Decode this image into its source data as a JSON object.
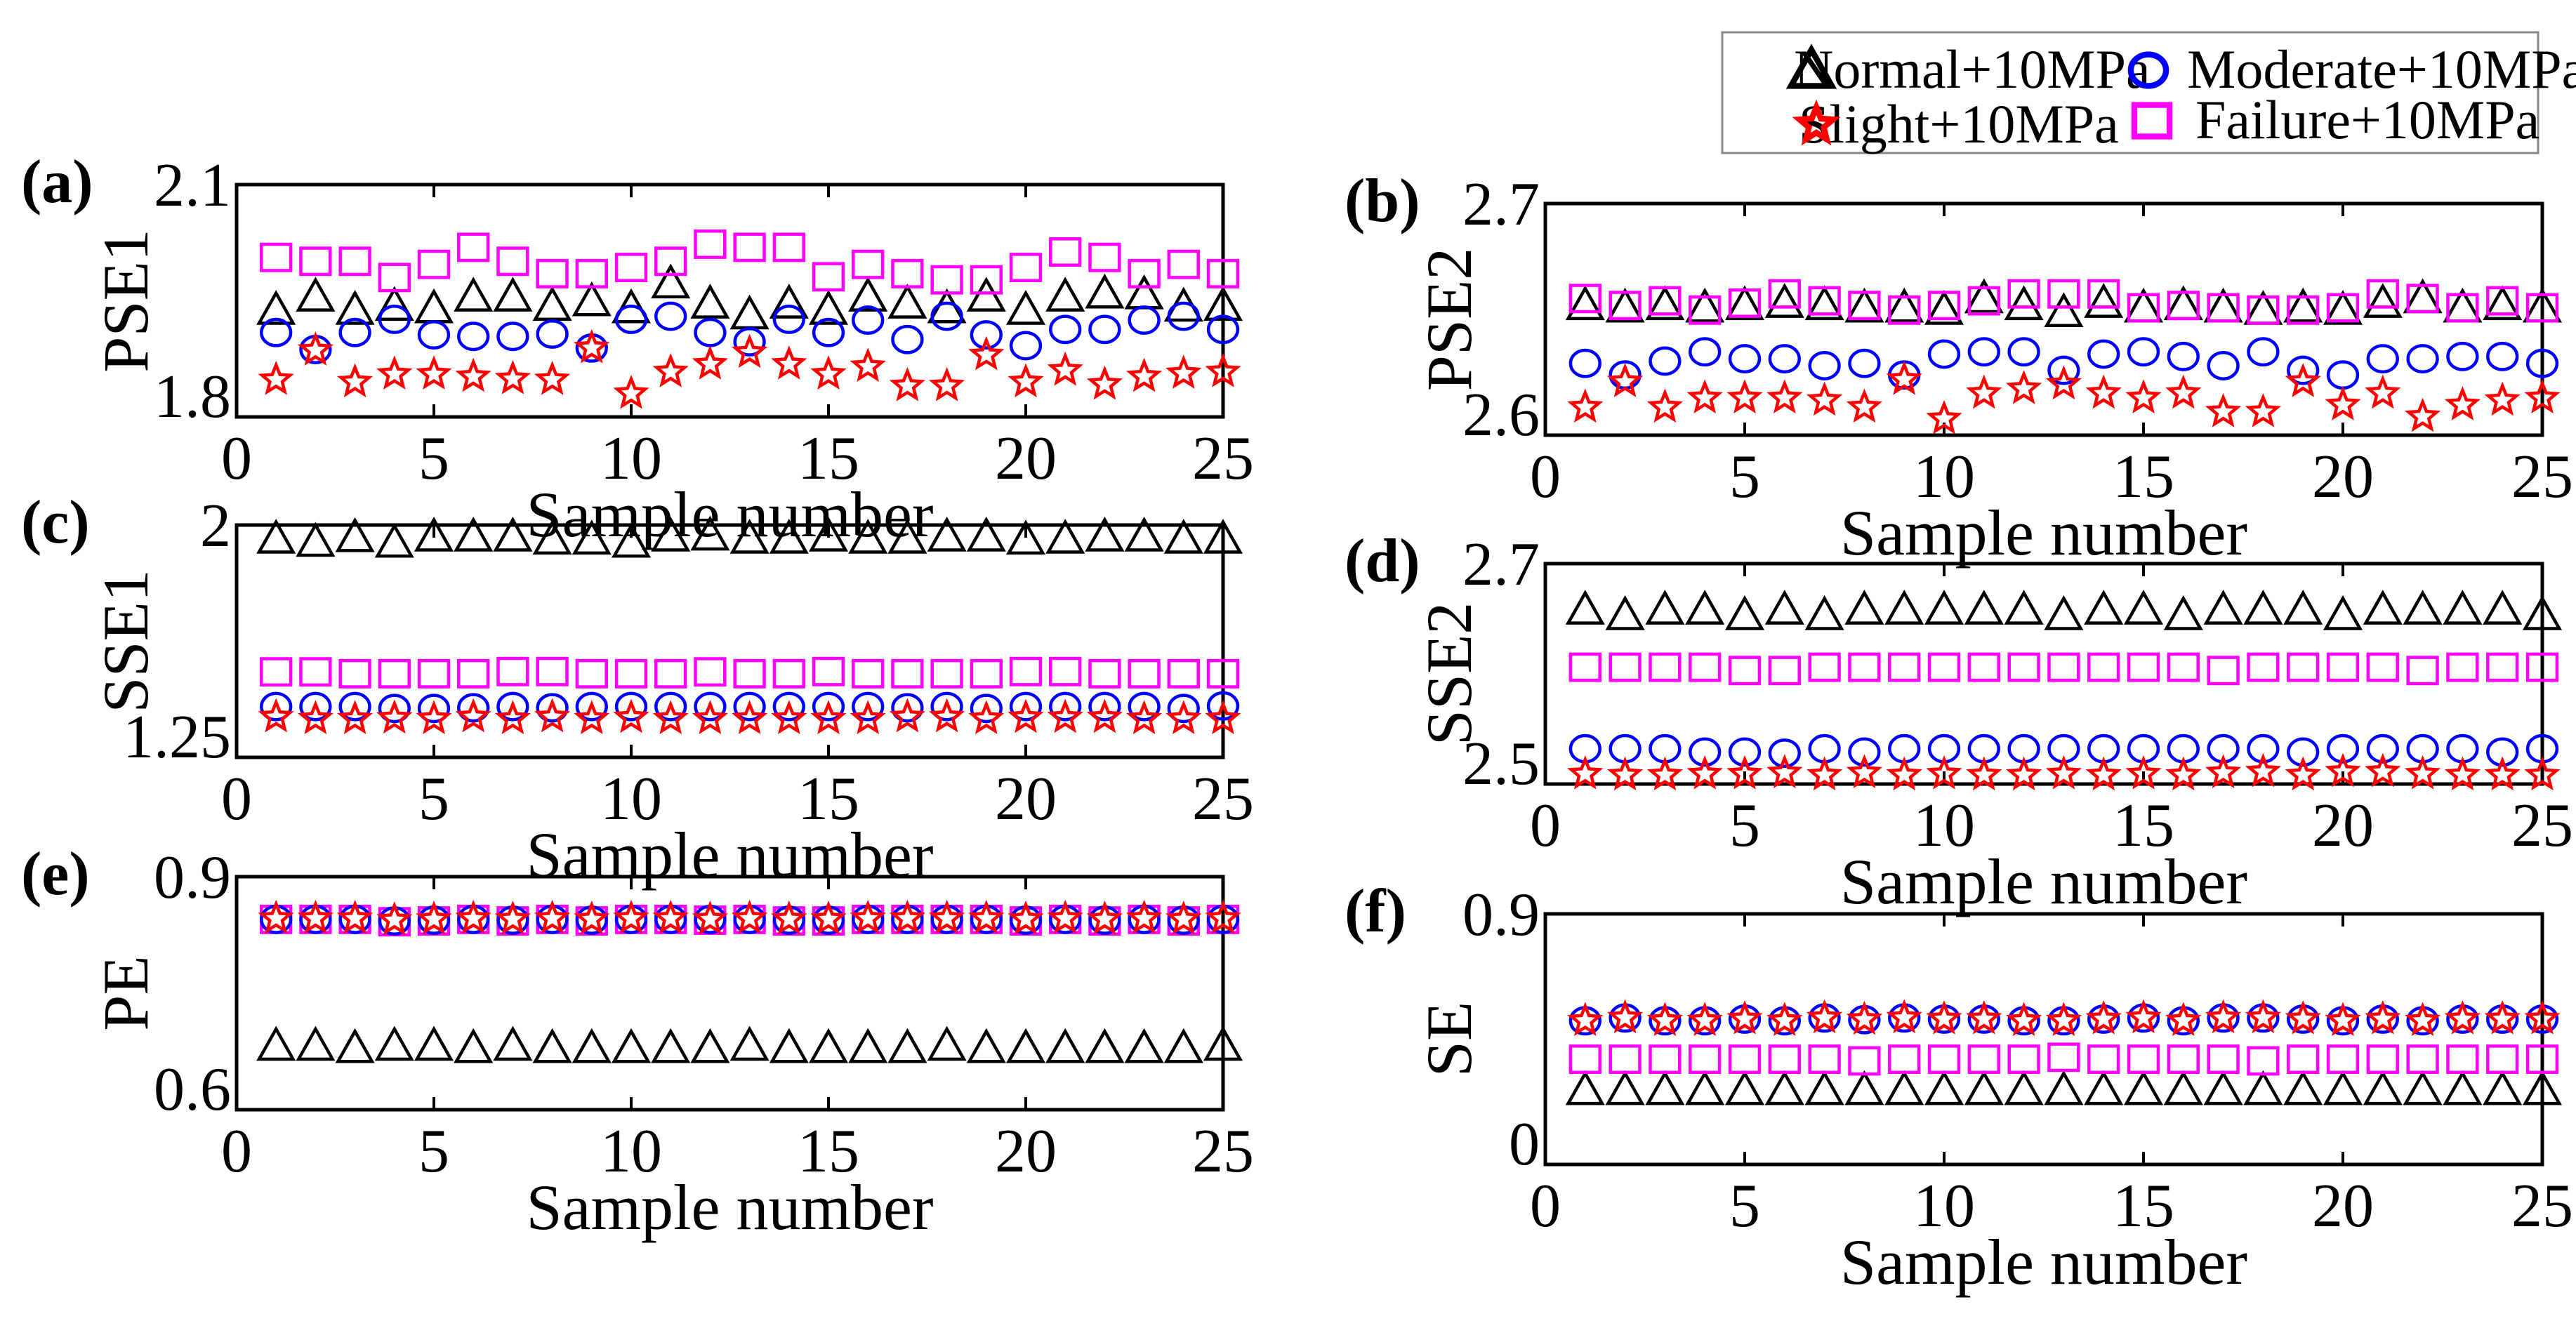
{
  "legend": {
    "entries": [
      {
        "name": "Normal+10MPa",
        "marker": "triangle",
        "color": "#000000"
      },
      {
        "name": "Moderate+10MPa",
        "marker": "circle",
        "color": "#0000ff"
      },
      {
        "name": "Slight+10MPa",
        "marker": "star",
        "color": "#ff0000"
      },
      {
        "name": "Failure+10MPa",
        "marker": "square",
        "color": "#ff00ff"
      }
    ]
  },
  "chart_data": [
    {
      "type": "scatter",
      "panel": "(a)",
      "xlabel": "Sample number",
      "ylabel": "PSE1",
      "xlim": [
        0,
        25
      ],
      "ylim": [
        1.8,
        2.1
      ],
      "xticks": [
        "0",
        "5",
        "10",
        "15",
        "20",
        "25"
      ],
      "yticks": [
        "1.8",
        "2.1"
      ],
      "x": [
        1,
        2,
        3,
        4,
        5,
        6,
        7,
        8,
        9,
        10,
        11,
        12,
        13,
        14,
        15,
        16,
        17,
        18,
        19,
        20,
        21,
        22,
        23,
        24,
        25
      ],
      "series": [
        {
          "name": "Normal+10MPa",
          "values": [
            1.938,
            1.955,
            1.938,
            1.943,
            1.94,
            1.955,
            1.955,
            1.943,
            1.949,
            1.94,
            1.972,
            1.946,
            1.932,
            1.946,
            1.938,
            1.955,
            1.946,
            1.94,
            1.955,
            1.938,
            1.955,
            1.959,
            1.958,
            1.942,
            1.943
          ]
        },
        {
          "name": "Failure+10MPa",
          "values": [
            2.006,
            2.001,
            2.001,
            1.98,
            1.997,
            2.019,
            2.001,
            1.985,
            1.985,
            1.993,
            2.001,
            2.023,
            2.019,
            2.019,
            1.981,
            1.997,
            1.985,
            1.977,
            1.977,
            1.993,
            2.013,
            2.006,
            1.985,
            1.997,
            1.985
          ]
        },
        {
          "name": "Moderate+10MPa",
          "values": [
            1.909,
            1.887,
            1.909,
            1.926,
            1.906,
            1.904,
            1.904,
            1.907,
            1.889,
            1.926,
            1.93,
            1.909,
            1.897,
            1.926,
            1.909,
            1.925,
            1.9,
            1.93,
            1.906,
            1.892,
            1.913,
            1.913,
            1.925,
            1.93,
            1.913
          ]
        },
        {
          "name": "Slight+10MPa",
          "values": [
            1.848,
            1.886,
            1.845,
            1.855,
            1.855,
            1.852,
            1.849,
            1.848,
            1.889,
            1.83,
            1.858,
            1.868,
            1.883,
            1.868,
            1.855,
            1.865,
            1.84,
            1.84,
            1.88,
            1.845,
            1.86,
            1.842,
            1.852,
            1.856,
            1.858
          ]
        }
      ]
    },
    {
      "type": "scatter",
      "panel": "(b)",
      "xlabel": "Sample number",
      "ylabel": "PSE2",
      "xlim": [
        0,
        25
      ],
      "ylim": [
        2.6,
        2.7
      ],
      "xticks": [
        "0",
        "5",
        "10",
        "15",
        "20",
        "25"
      ],
      "yticks": [
        "2.6",
        "2.7"
      ],
      "x": [
        1,
        2,
        3,
        4,
        5,
        6,
        7,
        8,
        9,
        10,
        11,
        12,
        13,
        14,
        15,
        16,
        17,
        18,
        19,
        20,
        21,
        22,
        23,
        24,
        25
      ],
      "series": [
        {
          "name": "Normal+10MPa",
          "values": [
            2.656,
            2.655,
            2.656,
            2.655,
            2.656,
            2.657,
            2.656,
            2.655,
            2.655,
            2.654,
            2.659,
            2.656,
            2.653,
            2.657,
            2.655,
            2.656,
            2.655,
            2.654,
            2.655,
            2.654,
            2.657,
            2.659,
            2.655,
            2.656,
            2.655
          ]
        },
        {
          "name": "Failure+10MPa",
          "values": [
            2.659,
            2.656,
            2.658,
            2.654,
            2.657,
            2.661,
            2.658,
            2.656,
            2.654,
            2.656,
            2.658,
            2.661,
            2.661,
            2.661,
            2.655,
            2.656,
            2.655,
            2.654,
            2.654,
            2.655,
            2.661,
            2.659,
            2.655,
            2.658,
            2.655
          ]
        },
        {
          "name": "Moderate+10MPa",
          "values": [
            2.631,
            2.626,
            2.632,
            2.636,
            2.633,
            2.633,
            2.63,
            2.631,
            2.626,
            2.635,
            2.636,
            2.636,
            2.628,
            2.635,
            2.636,
            2.634,
            2.63,
            2.636,
            2.628,
            2.626,
            2.633,
            2.633,
            2.634,
            2.634,
            2.631
          ]
        },
        {
          "name": "Slight+10MPa",
          "values": [
            2.612,
            2.623,
            2.612,
            2.616,
            2.616,
            2.616,
            2.615,
            2.612,
            2.624,
            2.607,
            2.618,
            2.62,
            2.622,
            2.618,
            2.616,
            2.618,
            2.61,
            2.61,
            2.623,
            2.613,
            2.618,
            2.608,
            2.613,
            2.615,
            2.616
          ]
        }
      ]
    },
    {
      "type": "scatter",
      "panel": "(c)",
      "xlabel": "Sample number",
      "ylabel": "SSE1",
      "xlim": [
        0,
        25
      ],
      "ylim": [
        1.25,
        2.0
      ],
      "xticks": [
        "0",
        "5",
        "10",
        "15",
        "20",
        "25"
      ],
      "yticks": [
        "1.25",
        "2"
      ],
      "x": [
        1,
        2,
        3,
        4,
        5,
        6,
        7,
        8,
        9,
        10,
        11,
        12,
        13,
        14,
        15,
        16,
        17,
        18,
        19,
        20,
        21,
        22,
        23,
        24,
        25
      ],
      "series": [
        {
          "name": "Normal+10MPa",
          "values": [
            1.955,
            1.945,
            1.96,
            1.942,
            1.962,
            1.962,
            1.962,
            1.952,
            1.952,
            1.942,
            1.962,
            1.965,
            1.955,
            1.955,
            1.962,
            1.955,
            1.955,
            1.962,
            1.962,
            1.952,
            1.955,
            1.962,
            1.962,
            1.955,
            1.955
          ]
        },
        {
          "name": "Failure+10MPa",
          "values": [
            1.526,
            1.526,
            1.52,
            1.52,
            1.52,
            1.52,
            1.527,
            1.527,
            1.52,
            1.52,
            1.52,
            1.526,
            1.52,
            1.52,
            1.527,
            1.52,
            1.52,
            1.52,
            1.52,
            1.527,
            1.527,
            1.52,
            1.52,
            1.52,
            1.52
          ]
        },
        {
          "name": "Moderate+10MPa",
          "values": [
            1.414,
            1.414,
            1.414,
            1.408,
            1.408,
            1.41,
            1.414,
            1.41,
            1.414,
            1.414,
            1.414,
            1.414,
            1.414,
            1.414,
            1.414,
            1.414,
            1.41,
            1.414,
            1.408,
            1.414,
            1.414,
            1.414,
            1.414,
            1.408,
            1.416
          ]
        },
        {
          "name": "Slight+10MPa",
          "values": [
            1.38,
            1.374,
            1.374,
            1.376,
            1.374,
            1.38,
            1.374,
            1.38,
            1.374,
            1.378,
            1.374,
            1.374,
            1.374,
            1.374,
            1.374,
            1.374,
            1.38,
            1.38,
            1.374,
            1.378,
            1.378,
            1.378,
            1.374,
            1.374,
            1.374
          ]
        }
      ]
    },
    {
      "type": "scatter",
      "panel": "(d)",
      "xlabel": "Sample number",
      "ylabel": "SSE2",
      "xlim": [
        0,
        25
      ],
      "ylim": [
        2.5,
        2.7
      ],
      "xticks": [
        "0",
        "5",
        "10",
        "15",
        "20",
        "25"
      ],
      "yticks": [
        "2.5",
        "2.7"
      ],
      "x": [
        1,
        2,
        3,
        4,
        5,
        6,
        7,
        8,
        9,
        10,
        11,
        12,
        13,
        14,
        15,
        16,
        17,
        18,
        19,
        20,
        21,
        22,
        23,
        24,
        25
      ],
      "series": [
        {
          "name": "Normal+10MPa",
          "values": [
            2.658,
            2.653,
            2.658,
            2.658,
            2.653,
            2.658,
            2.653,
            2.658,
            2.658,
            2.658,
            2.658,
            2.658,
            2.653,
            2.658,
            2.658,
            2.653,
            2.658,
            2.658,
            2.658,
            2.653,
            2.658,
            2.658,
            2.658,
            2.658,
            2.653
          ]
        },
        {
          "name": "Failure+10MPa",
          "values": [
            2.606,
            2.606,
            2.606,
            2.606,
            2.603,
            2.603,
            2.606,
            2.606,
            2.606,
            2.606,
            2.606,
            2.606,
            2.606,
            2.606,
            2.606,
            2.606,
            2.603,
            2.606,
            2.606,
            2.606,
            2.606,
            2.603,
            2.606,
            2.606,
            2.606
          ]
        },
        {
          "name": "Moderate+10MPa",
          "values": [
            2.532,
            2.532,
            2.532,
            2.529,
            2.529,
            2.528,
            2.532,
            2.529,
            2.532,
            2.532,
            2.532,
            2.532,
            2.532,
            2.532,
            2.532,
            2.532,
            2.532,
            2.532,
            2.529,
            2.532,
            2.532,
            2.532,
            2.532,
            2.529,
            2.532
          ]
        },
        {
          "name": "Slight+10MPa",
          "values": [
            2.509,
            2.508,
            2.508,
            2.509,
            2.509,
            2.51,
            2.508,
            2.51,
            2.508,
            2.509,
            2.508,
            2.508,
            2.509,
            2.508,
            2.509,
            2.508,
            2.51,
            2.511,
            2.508,
            2.511,
            2.511,
            2.509,
            2.508,
            2.508,
            2.508
          ]
        }
      ]
    },
    {
      "type": "scatter",
      "panel": "(e)",
      "xlabel": "Sample number",
      "ylabel": "PE",
      "xlim": [
        0,
        25
      ],
      "ylim": [
        0.6,
        0.9
      ],
      "xticks": [
        "0",
        "5",
        "10",
        "15",
        "20",
        "25"
      ],
      "yticks": [
        "0.6",
        "0.9"
      ],
      "x": [
        1,
        2,
        3,
        4,
        5,
        6,
        7,
        8,
        9,
        10,
        11,
        12,
        13,
        14,
        15,
        16,
        17,
        18,
        19,
        20,
        21,
        22,
        23,
        24,
        25
      ],
      "series": [
        {
          "name": "Normal+10MPa",
          "values": [
            0.682,
            0.682,
            0.679,
            0.682,
            0.682,
            0.679,
            0.682,
            0.679,
            0.679,
            0.679,
            0.679,
            0.679,
            0.682,
            0.679,
            0.679,
            0.679,
            0.679,
            0.682,
            0.679,
            0.679,
            0.679,
            0.679,
            0.679,
            0.679,
            0.682
          ]
        },
        {
          "name": "Failure+10MPa",
          "values": [
            0.845,
            0.845,
            0.845,
            0.842,
            0.843,
            0.845,
            0.843,
            0.845,
            0.843,
            0.845,
            0.845,
            0.844,
            0.845,
            0.843,
            0.843,
            0.845,
            0.845,
            0.845,
            0.845,
            0.843,
            0.845,
            0.843,
            0.845,
            0.843,
            0.845
          ]
        },
        {
          "name": "Moderate+10MPa",
          "values": [
            0.845,
            0.845,
            0.845,
            0.843,
            0.844,
            0.845,
            0.844,
            0.845,
            0.844,
            0.845,
            0.845,
            0.845,
            0.845,
            0.844,
            0.844,
            0.845,
            0.845,
            0.845,
            0.845,
            0.844,
            0.845,
            0.844,
            0.845,
            0.844,
            0.845
          ]
        },
        {
          "name": "Slight+10MPa",
          "values": [
            0.846,
            0.846,
            0.846,
            0.844,
            0.845,
            0.846,
            0.845,
            0.846,
            0.845,
            0.846,
            0.846,
            0.845,
            0.846,
            0.845,
            0.845,
            0.846,
            0.846,
            0.846,
            0.846,
            0.845,
            0.846,
            0.845,
            0.846,
            0.845,
            0.846
          ]
        }
      ]
    },
    {
      "type": "scatter",
      "panel": "(f)",
      "xlabel": "Sample number",
      "ylabel": "SE",
      "xlim": [
        0,
        25
      ],
      "ylim": [
        0,
        0.9
      ],
      "xticks": [
        "0",
        "5",
        "10",
        "15",
        "20",
        "25"
      ],
      "yticks": [
        "0",
        "0.9"
      ],
      "x": [
        1,
        2,
        3,
        4,
        5,
        6,
        7,
        8,
        9,
        10,
        11,
        12,
        13,
        14,
        15,
        16,
        17,
        18,
        19,
        20,
        21,
        22,
        23,
        24,
        25
      ],
      "series": [
        {
          "name": "Normal+10MPa",
          "values": [
            0.266,
            0.266,
            0.266,
            0.266,
            0.266,
            0.266,
            0.266,
            0.266,
            0.266,
            0.266,
            0.266,
            0.266,
            0.266,
            0.266,
            0.266,
            0.266,
            0.266,
            0.266,
            0.266,
            0.266,
            0.266,
            0.266,
            0.266,
            0.266,
            0.266
          ]
        },
        {
          "name": "Failure+10MPa",
          "values": [
            0.378,
            0.378,
            0.378,
            0.378,
            0.378,
            0.378,
            0.378,
            0.372,
            0.378,
            0.378,
            0.378,
            0.378,
            0.385,
            0.378,
            0.378,
            0.378,
            0.378,
            0.372,
            0.378,
            0.378,
            0.378,
            0.378,
            0.378,
            0.378,
            0.378
          ]
        },
        {
          "name": "Moderate+10MPa",
          "values": [
            0.516,
            0.526,
            0.516,
            0.516,
            0.522,
            0.516,
            0.526,
            0.52,
            0.526,
            0.522,
            0.522,
            0.516,
            0.516,
            0.522,
            0.526,
            0.516,
            0.526,
            0.526,
            0.522,
            0.516,
            0.522,
            0.516,
            0.522,
            0.522,
            0.522
          ]
        },
        {
          "name": "Slight+10MPa",
          "values": [
            0.516,
            0.526,
            0.516,
            0.516,
            0.522,
            0.516,
            0.526,
            0.52,
            0.526,
            0.522,
            0.522,
            0.516,
            0.516,
            0.522,
            0.526,
            0.516,
            0.526,
            0.526,
            0.522,
            0.516,
            0.522,
            0.516,
            0.522,
            0.522,
            0.522
          ]
        }
      ]
    }
  ]
}
